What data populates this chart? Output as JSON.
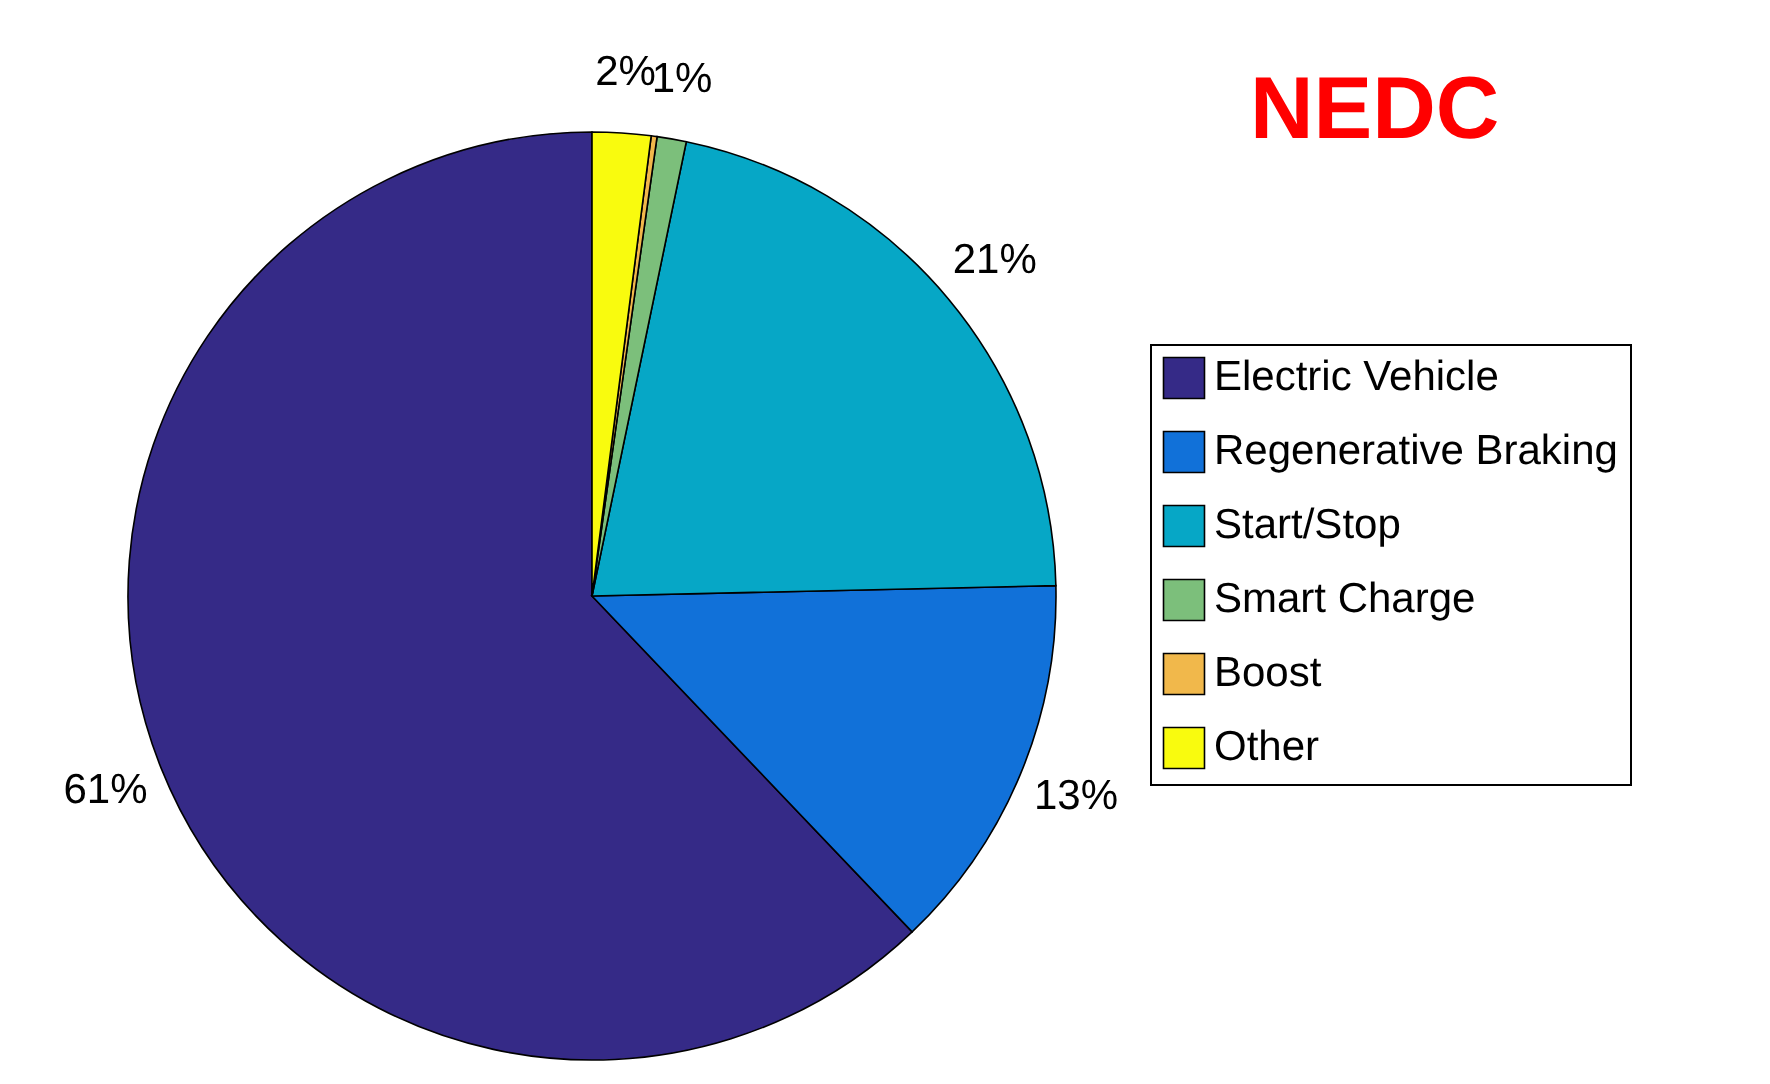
{
  "chart_data": {
    "type": "pie",
    "title": "NEDC",
    "categories": [
      "Electric Vehicle",
      "Regenerative Braking",
      "Start/Stop",
      "Smart Charge",
      "Boost",
      "Other"
    ],
    "values": [
      61,
      13,
      21,
      1,
      0.2,
      2
    ],
    "value_labels": [
      "61%",
      "13%",
      "21%",
      "1%",
      null,
      "2%"
    ],
    "colors": [
      "#352a87",
      "#1171d9",
      "#06a7c6",
      "#7cbf7b",
      "#f1b84b",
      "#f9fb0e"
    ],
    "legend": "right"
  }
}
